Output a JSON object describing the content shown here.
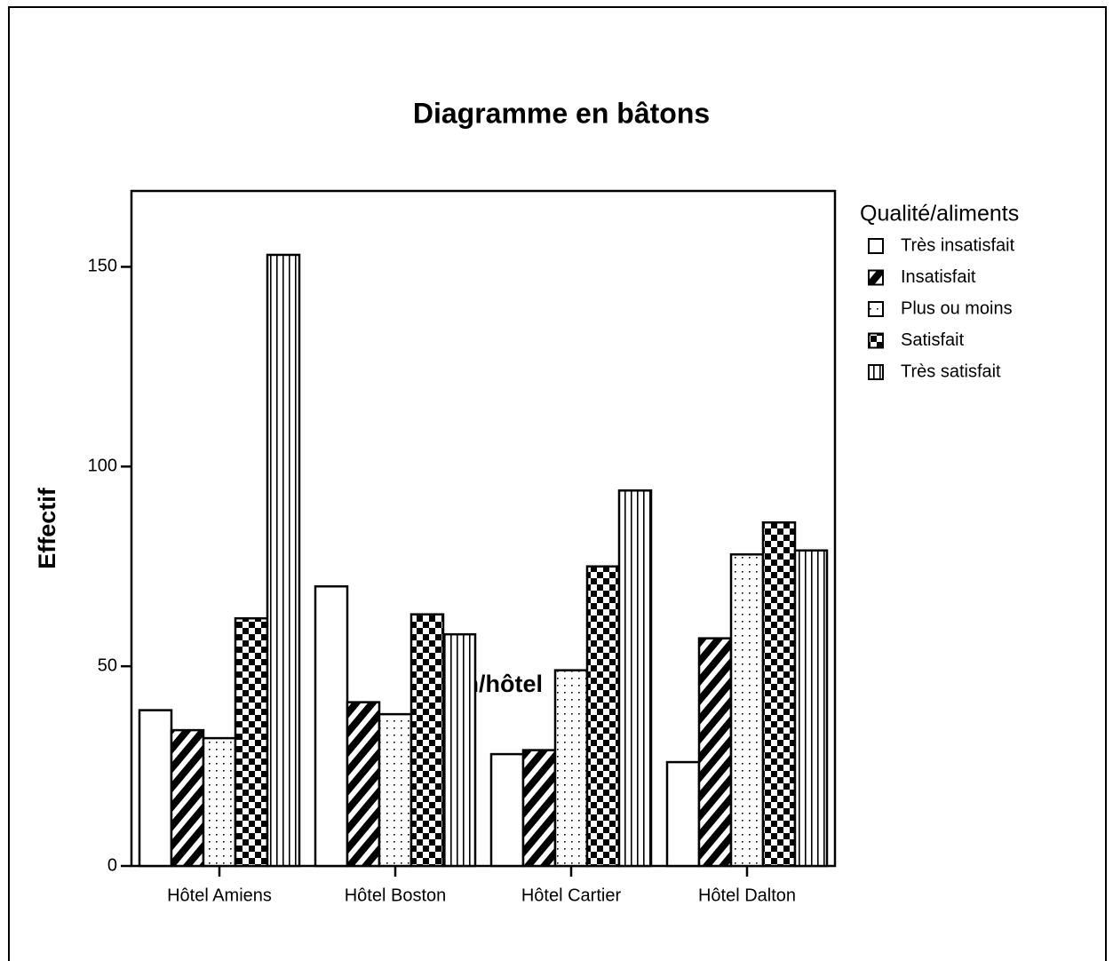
{
  "chart_data": {
    "type": "bar",
    "title": "Diagramme en bâtons",
    "x_label": "Nom/hôtel",
    "y_label": "Effectif",
    "legend_title": "Qualité/aliments",
    "legend": "right",
    "categories": [
      "Hôtel Amiens",
      "Hôtel Boston",
      "Hôtel Cartier",
      "Hôtel Dalton"
    ],
    "series": [
      {
        "name": "Très insatisfait",
        "color": "#ffffff",
        "pattern": "none",
        "values": [
          39,
          70,
          28,
          26
        ]
      },
      {
        "name": "Insatisfait",
        "color": "#ffffff",
        "pattern": "diagonal",
        "values": [
          34,
          41,
          29,
          57
        ]
      },
      {
        "name": "Plus ou moins",
        "color": "#ffffff",
        "pattern": "dots",
        "values": [
          32,
          38,
          49,
          78
        ]
      },
      {
        "name": "Satisfait",
        "color": "#ffffff",
        "pattern": "checker",
        "values": [
          62,
          63,
          75,
          86
        ]
      },
      {
        "name": "Très satisfait",
        "color": "#ffffff",
        "pattern": "vertical",
        "values": [
          153,
          58,
          94,
          79
        ]
      }
    ],
    "ylim": [
      0,
      169
    ],
    "yticks": [
      0,
      50,
      100,
      150
    ],
    "grid": false
  }
}
